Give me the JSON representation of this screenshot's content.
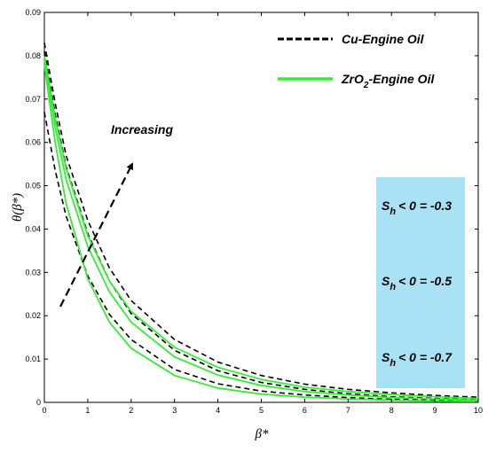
{
  "chart_data": {
    "type": "line",
    "xlabel": "β*",
    "ylabel": "θ(β*)",
    "xlim": [
      0,
      10
    ],
    "ylim": [
      0,
      0.09
    ],
    "x_ticks": [
      "0",
      "1",
      "2",
      "3",
      "4",
      "5",
      "6",
      "7",
      "8",
      "9",
      "10"
    ],
    "y_ticks": [
      "0",
      "0.01",
      "0.02",
      "0.03",
      "0.04",
      "0.05",
      "0.06",
      "0.07",
      "0.08",
      "0.09"
    ],
    "legend": {
      "position": "top-right",
      "entries": [
        {
          "label": "Cu-Engine Oil",
          "style": "dashed",
          "color": "#000000"
        },
        {
          "label": "ZrO2-Engine Oil",
          "label_main": "ZrO",
          "label_sub": "2",
          "label_tail": "-Engine Oil",
          "style": "solid",
          "color": "#33ee33"
        }
      ]
    },
    "annotation": {
      "label": "Increasing"
    },
    "parameter_box": {
      "color": "#a9e2f5",
      "labels": [
        {
          "main": "S",
          "sub": "h",
          "tail": "< 0 = -0.3"
        },
        {
          "main": "S",
          "sub": "h",
          "tail": "< 0 = -0.5"
        },
        {
          "main": "S",
          "sub": "h",
          "tail": "< 0 = -0.7"
        }
      ]
    },
    "series": [
      {
        "group": "Cu-Engine Oil",
        "Sh": -0.7,
        "style": "dashed",
        "color": "#000000",
        "x": [
          0,
          0.25,
          0.5,
          1,
          1.5,
          2,
          3,
          4,
          5,
          6,
          7,
          8,
          9,
          10
        ],
        "y": [
          0.067,
          0.0535,
          0.043,
          0.0292,
          0.0203,
          0.0145,
          0.0076,
          0.0043,
          0.0026,
          0.0017,
          0.0011,
          0.0007,
          0.0005,
          0.0003
        ]
      },
      {
        "group": "Cu-Engine Oil",
        "Sh": -0.5,
        "style": "dashed",
        "color": "#000000",
        "x": [
          0,
          0.25,
          0.5,
          1,
          1.5,
          2,
          3,
          4,
          5,
          6,
          7,
          8,
          9,
          10
        ],
        "y": [
          0.081,
          0.0665,
          0.0545,
          0.039,
          0.028,
          0.0205,
          0.012,
          0.0073,
          0.0046,
          0.003,
          0.002,
          0.0013,
          0.0009,
          0.0006
        ]
      },
      {
        "group": "Cu-Engine Oil",
        "Sh": -0.3,
        "style": "dashed",
        "color": "#000000",
        "x": [
          0,
          0.25,
          0.5,
          1,
          1.5,
          2,
          3,
          4,
          5,
          6,
          7,
          8,
          9,
          10
        ],
        "y": [
          0.083,
          0.069,
          0.057,
          0.042,
          0.031,
          0.0235,
          0.0145,
          0.0093,
          0.0062,
          0.0042,
          0.003,
          0.0022,
          0.0016,
          0.0012
        ]
      },
      {
        "group": "ZrO2-Engine Oil",
        "Sh": -0.7,
        "style": "solid",
        "color": "#33ee33",
        "x": [
          0,
          0.25,
          0.5,
          1,
          1.5,
          2,
          3,
          4,
          5,
          6,
          7,
          8,
          9,
          10
        ],
        "y": [
          0.078,
          0.06,
          0.046,
          0.0285,
          0.0185,
          0.0125,
          0.0062,
          0.0033,
          0.0019,
          0.0012,
          0.0008,
          0.0005,
          0.0003,
          0.0002
        ]
      },
      {
        "group": "ZrO2-Engine Oil",
        "Sh": -0.5,
        "style": "solid",
        "color": "#33ee33",
        "x": [
          0,
          0.25,
          0.5,
          1,
          1.5,
          2,
          3,
          4,
          5,
          6,
          7,
          8,
          9,
          10
        ],
        "y": [
          0.079,
          0.0635,
          0.0515,
          0.036,
          0.0255,
          0.0185,
          0.0105,
          0.0063,
          0.0039,
          0.0025,
          0.0017,
          0.0011,
          0.0008,
          0.0005
        ]
      },
      {
        "group": "ZrO2-Engine Oil",
        "Sh": -0.3,
        "style": "solid",
        "color": "#33ee33",
        "x": [
          0,
          0.25,
          0.5,
          1,
          1.5,
          2,
          3,
          4,
          5,
          6,
          7,
          8,
          9,
          10
        ],
        "y": [
          0.08,
          0.0655,
          0.054,
          0.0385,
          0.028,
          0.021,
          0.0127,
          0.0081,
          0.0053,
          0.0035,
          0.0025,
          0.0018,
          0.0013,
          0.0009
        ]
      }
    ]
  }
}
